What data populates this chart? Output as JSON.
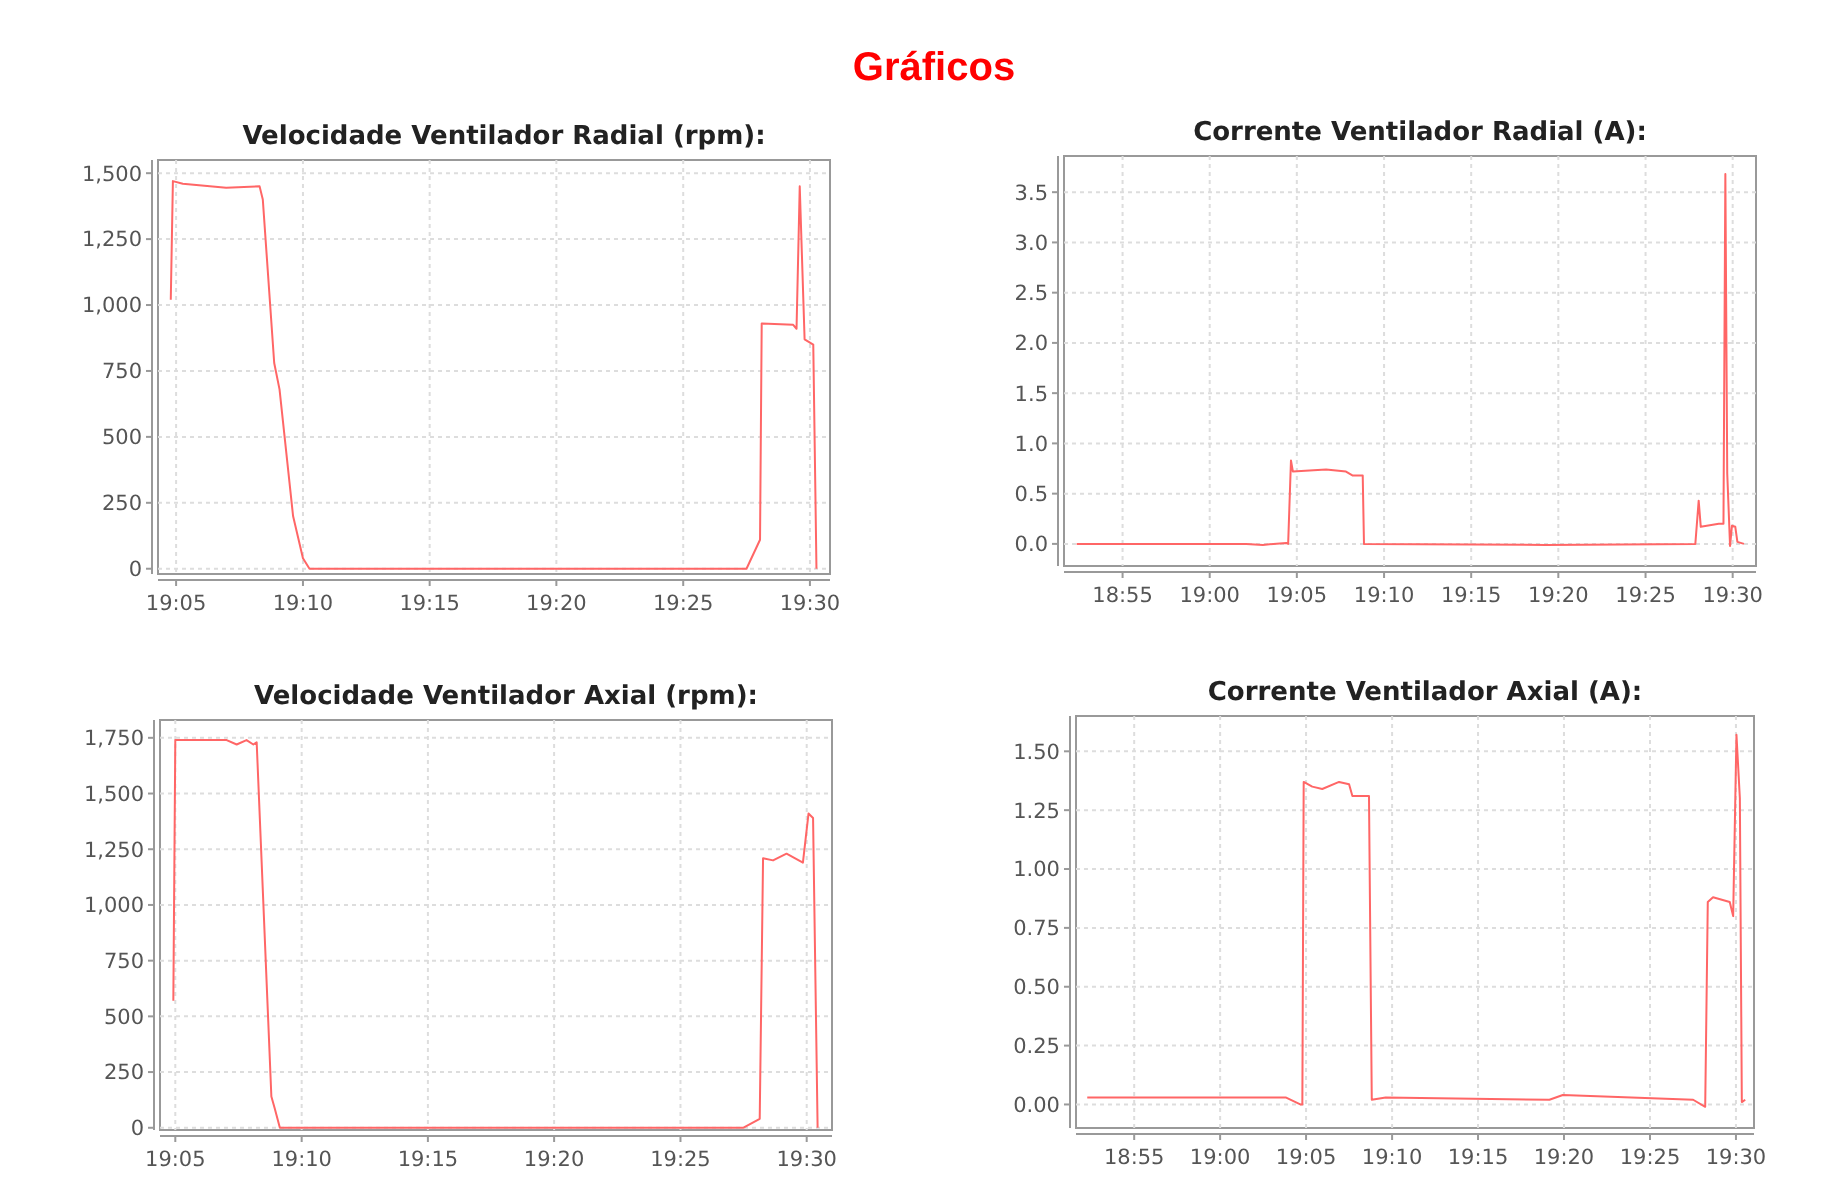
{
  "chart_data": [
    {
      "type": "line",
      "title": "Velocidade Ventilador Radial (rpm):",
      "annotations": [
        "Gráficos"
      ],
      "grid": true,
      "marker": "none",
      "line_style": "solid",
      "xlim": [
        19.0714,
        19.5132
      ],
      "xticks": [
        {
          "value": 19.0833,
          "label": "19:05"
        },
        {
          "value": 19.1667,
          "label": "19:10"
        },
        {
          "value": 19.25,
          "label": "19:15"
        },
        {
          "value": 19.3333,
          "label": "19:20"
        },
        {
          "value": 19.4167,
          "label": "19:25"
        },
        {
          "value": 19.5,
          "label": "19:30"
        }
      ],
      "ylim": [
        -20,
        1550
      ],
      "yticks": [
        {
          "value": 0,
          "label": "0"
        },
        {
          "value": 250,
          "label": "250"
        },
        {
          "value": 500,
          "label": "500"
        },
        {
          "value": 750,
          "label": "750"
        },
        {
          "value": 1000,
          "label": "1,000"
        },
        {
          "value": 1250,
          "label": "1,250"
        },
        {
          "value": 1500,
          "label": "1,500"
        }
      ],
      "series": [
        {
          "color": "#ff6666",
          "x": [
            19.0798,
            19.0812,
            19.0877,
            19.1162,
            19.1382,
            19.1403,
            19.1478,
            19.1513,
            19.1602,
            19.1667,
            19.171,
            19.4583,
            19.4672,
            19.4683,
            19.489,
            19.4912,
            19.4933,
            19.4965,
            19.5022,
            19.5043
          ],
          "values": [
            1020,
            1470,
            1460,
            1445,
            1450,
            1400,
            780,
            680,
            200,
            40,
            0,
            0,
            110,
            930,
            925,
            910,
            1450,
            870,
            850,
            0
          ]
        }
      ]
    },
    {
      "type": "line",
      "title": "Corrente Ventilador Radial (A):",
      "grid": true,
      "marker": "none",
      "line_style": "solid",
      "xlim": [
        18.8607,
        19.5223
      ],
      "xticks": [
        {
          "value": 18.9167,
          "label": "18:55"
        },
        {
          "value": 19,
          "label": "19:00"
        },
        {
          "value": 19.0833,
          "label": "19:05"
        },
        {
          "value": 19.1667,
          "label": "19:10"
        },
        {
          "value": 19.25,
          "label": "19:15"
        },
        {
          "value": 19.3333,
          "label": "19:20"
        },
        {
          "value": 19.4167,
          "label": "19:25"
        },
        {
          "value": 19.5,
          "label": "19:30"
        }
      ],
      "ylim": [
        -0.22,
        3.86
      ],
      "yticks": [
        {
          "value": 0,
          "label": "0.0"
        },
        {
          "value": 0.5,
          "label": "0.5"
        },
        {
          "value": 1,
          "label": "1.0"
        },
        {
          "value": 1.5,
          "label": "1.5"
        },
        {
          "value": 2,
          "label": "2.0"
        },
        {
          "value": 2.5,
          "label": "2.5"
        },
        {
          "value": 3,
          "label": "3.0"
        },
        {
          "value": 3.5,
          "label": "3.5"
        }
      ],
      "series": [
        {
          "color": "#ff6666",
          "x": [
            18.8728,
            18.8792,
            19.035,
            19.0508,
            19.0732,
            19.075,
            19.0777,
            19.0795,
            19.1113,
            19.1303,
            19.1368,
            19.1463,
            19.1475,
            19.3212,
            19.4643,
            19.4675,
            19.4695,
            19.4867,
            19.4912,
            19.493,
            19.4948,
            19.4975,
            19.4993,
            19.5025,
            19.5045,
            19.5108
          ],
          "values": [
            0,
            0,
            0,
            -0.01,
            0.01,
            0,
            0.83,
            0.72,
            0.74,
            0.72,
            0.68,
            0.68,
            0,
            -0.01,
            0,
            0.43,
            0.17,
            0.2,
            0.2,
            3.68,
            0.7,
            -0.02,
            0.18,
            0.17,
            0.02,
            0
          ]
        }
      ]
    },
    {
      "type": "line",
      "title": "Velocidade Ventilador Axial (rpm):",
      "grid": true,
      "marker": "none",
      "line_style": "solid",
      "xlim": [
        19.0732,
        19.5167
      ],
      "xticks": [
        {
          "value": 19.0833,
          "label": "19:05"
        },
        {
          "value": 19.1667,
          "label": "19:10"
        },
        {
          "value": 19.25,
          "label": "19:15"
        },
        {
          "value": 19.3333,
          "label": "19:20"
        },
        {
          "value": 19.4167,
          "label": "19:25"
        },
        {
          "value": 19.5,
          "label": "19:30"
        }
      ],
      "ylim": [
        -10,
        1830
      ],
      "yticks": [
        {
          "value": 0,
          "label": "0"
        },
        {
          "value": 250,
          "label": "250"
        },
        {
          "value": 500,
          "label": "500"
        },
        {
          "value": 750,
          "label": "750"
        },
        {
          "value": 1000,
          "label": "1,000"
        },
        {
          "value": 1250,
          "label": "1,250"
        },
        {
          "value": 1500,
          "label": "1,500"
        },
        {
          "value": 1750,
          "label": "1,750"
        }
      ],
      "series": [
        {
          "color": "#ff6666",
          "x": [
            19.082,
            19.0833,
            19.0997,
            19.1172,
            19.1238,
            19.1303,
            19.1348,
            19.137,
            19.1467,
            19.1488,
            19.1523,
            19.458,
            19.469,
            19.4712,
            19.4778,
            19.4867,
            19.4975,
            19.5012,
            19.5042,
            19.5072
          ],
          "values": [
            570,
            1740,
            1740,
            1740,
            1720,
            1740,
            1720,
            1730,
            140,
            90,
            0,
            0,
            40,
            1210,
            1200,
            1230,
            1190,
            1410,
            1390,
            0
          ]
        }
      ]
    },
    {
      "type": "line",
      "title": "Corrente Ventilador Axial (A):",
      "grid": true,
      "marker": "none",
      "line_style": "solid",
      "xlim": [
        18.8603,
        19.5175
      ],
      "xticks": [
        {
          "value": 18.9167,
          "label": "18:55"
        },
        {
          "value": 19,
          "label": "19:00"
        },
        {
          "value": 19.0833,
          "label": "19:05"
        },
        {
          "value": 19.1667,
          "label": "19:10"
        },
        {
          "value": 19.25,
          "label": "19:15"
        },
        {
          "value": 19.3333,
          "label": "19:20"
        },
        {
          "value": 19.4167,
          "label": "19:25"
        },
        {
          "value": 19.5,
          "label": "19:30"
        }
      ],
      "ylim": [
        -0.1,
        1.65
      ],
      "yticks": [
        {
          "value": 0,
          "label": "0.00"
        },
        {
          "value": 0.25,
          "label": "0.25"
        },
        {
          "value": 0.5,
          "label": "0.50"
        },
        {
          "value": 0.75,
          "label": "0.75"
        },
        {
          "value": 1,
          "label": "1.00"
        },
        {
          "value": 1.25,
          "label": "1.25"
        },
        {
          "value": 1.5,
          "label": "1.50"
        }
      ],
      "series": [
        {
          "color": "#ff6666",
          "x": [
            18.8712,
            18.9533,
            19.0635,
            19.0777,
            19.0797,
            19.081,
            19.0893,
            19.099,
            19.1153,
            19.125,
            19.1282,
            19.1443,
            19.147,
            19.1605,
            19.3192,
            19.3322,
            19.4585,
            19.4702,
            19.4727,
            19.4778,
            19.494,
            19.4973,
            19.5005,
            19.5038,
            19.5057,
            19.509
          ],
          "values": [
            0.03,
            0.03,
            0.03,
            0,
            0,
            1.37,
            1.35,
            1.34,
            1.37,
            1.36,
            1.31,
            1.31,
            0.02,
            0.03,
            0.02,
            0.04,
            0.02,
            -0.01,
            0.86,
            0.88,
            0.86,
            0.8,
            1.57,
            1.3,
            0.01,
            0.02
          ]
        }
      ]
    }
  ]
}
